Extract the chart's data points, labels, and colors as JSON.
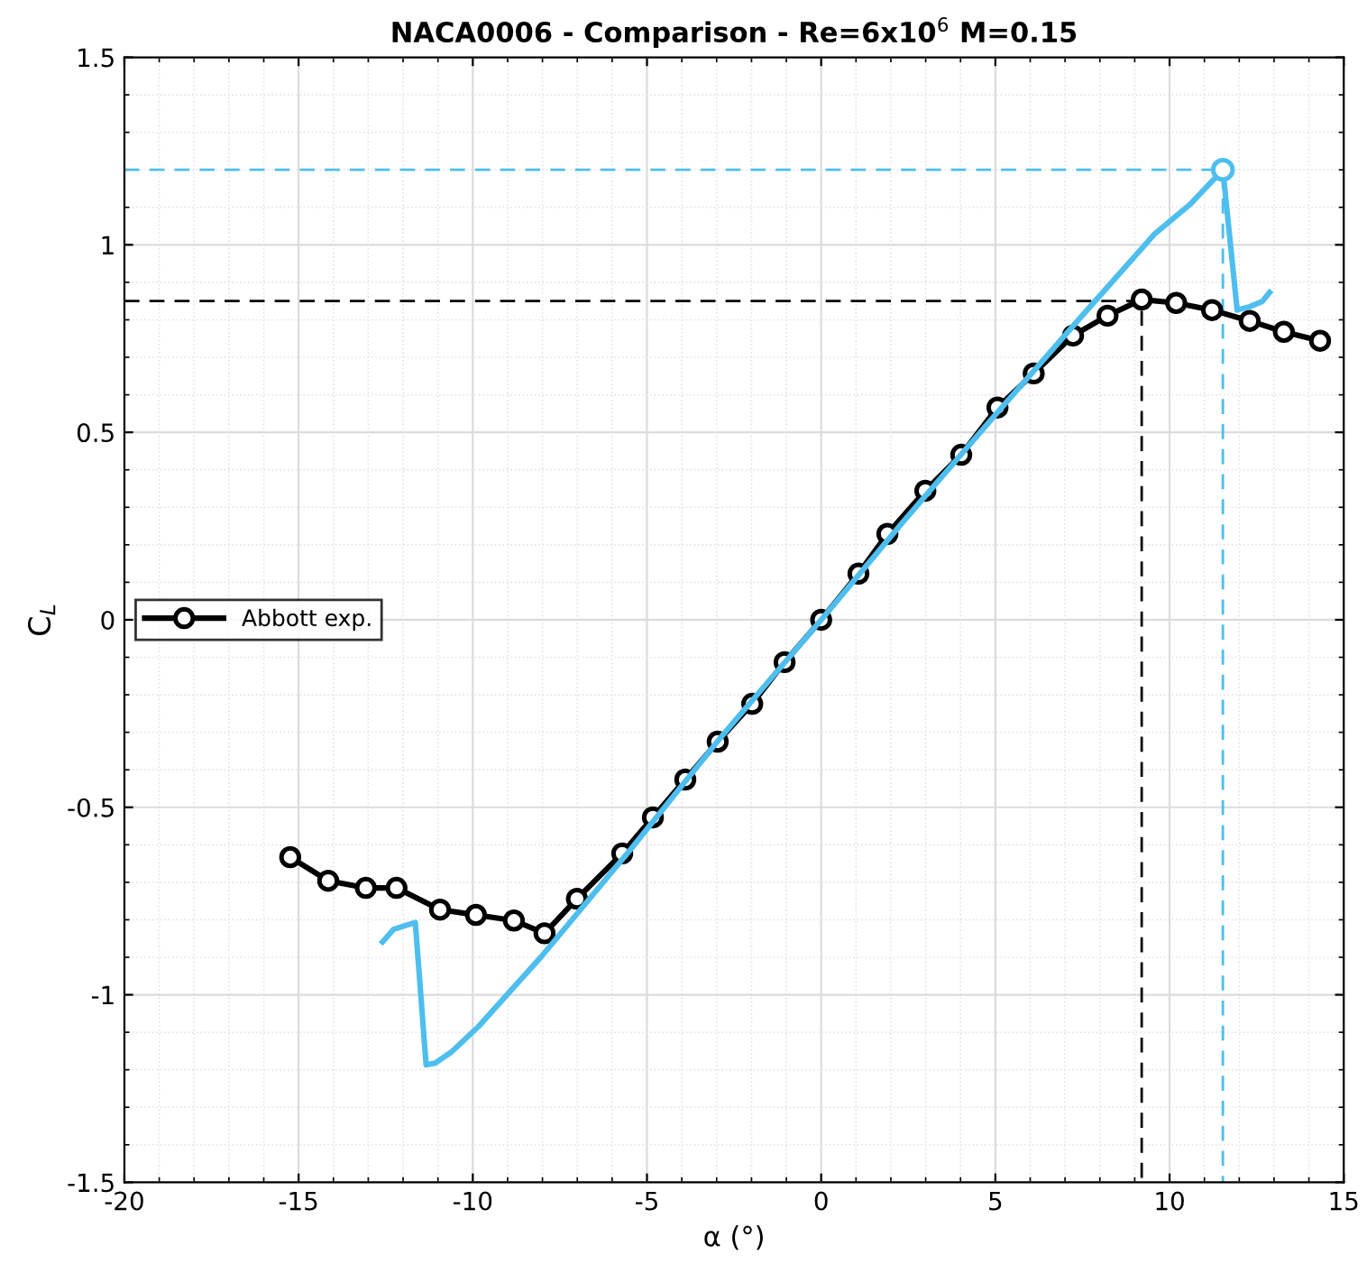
{
  "chart_data": {
    "type": "line",
    "title": "NACA0006 - Comparison - Re=6x10$^{6}$ M=0.15",
    "xlabel": "α (°)",
    "ylabel": "C$_{L}$",
    "xlim": [
      -20,
      15
    ],
    "xticks": [
      -20,
      -15,
      -10,
      -5,
      0,
      5,
      10,
      15
    ],
    "ylim": [
      -1.5,
      1.5
    ],
    "yticks": [
      -1.5,
      -1,
      -0.5,
      0,
      0.5,
      1,
      1.5
    ],
    "grid": true,
    "legend": "left",
    "series": [
      {
        "name": "Abbott exp.",
        "color": "#000000",
        "marker": "circle",
        "line_style": "solid",
        "x": [
          -15.24,
          -14.15,
          -13.07,
          -12.19,
          -10.94,
          -9.91,
          -8.82,
          -7.94,
          -7.01,
          -5.71,
          -4.83,
          -3.9,
          -2.97,
          -1.98,
          -1.05,
          0,
          1.07,
          1.9,
          2.99,
          4.02,
          5.06,
          6.1,
          7.23,
          8.22,
          9.2,
          10.19,
          11.22,
          12.3,
          13.28,
          14.32
        ],
        "values": [
          -0.633,
          -0.696,
          -0.715,
          -0.715,
          -0.773,
          -0.787,
          -0.802,
          -0.836,
          -0.744,
          -0.623,
          -0.527,
          -0.426,
          -0.325,
          -0.224,
          -0.113,
          0,
          0.123,
          0.229,
          0.344,
          0.44,
          0.566,
          0.657,
          0.758,
          0.811,
          0.854,
          0.845,
          0.826,
          0.797,
          0.768,
          0.744
        ]
      },
      {
        "color": "#4dbeee",
        "marker": "none",
        "line_style": "solid",
        "x": [
          -12.59,
          -12.28,
          -11.96,
          -11.65,
          -11.34,
          -11.08,
          -10.62,
          -9.84,
          -8.03,
          -5.44,
          -2.86,
          0,
          2.32,
          4.91,
          7.49,
          9.56,
          10.6,
          11.53,
          11.94,
          12.3,
          12.66,
          12.87
        ],
        "values": [
          -0.859,
          -0.826,
          -0.816,
          -0.807,
          -1.187,
          -1.182,
          -1.153,
          -1.085,
          -0.898,
          -0.609,
          -0.311,
          0,
          0.258,
          0.537,
          0.811,
          1.028,
          1.109,
          1.2,
          0.826,
          0.835,
          0.849,
          0.873
        ]
      },
      {
        "color": "#000000",
        "marker": "none",
        "line_style": "dashed",
        "x": [
          -20,
          9.2,
          9.2
        ],
        "values": [
          0.85,
          0.85,
          -1.5
        ]
      },
      {
        "color": "#4dbeee",
        "marker": "none",
        "line_style": "dashed",
        "x": [
          -20,
          11.53,
          11.53
        ],
        "values": [
          1.2,
          1.2,
          -1.5
        ]
      },
      {
        "color": "#4dbeee",
        "type": "scatter",
        "marker": "circle",
        "x": [
          11.53
        ],
        "values": [
          1.2
        ]
      }
    ]
  }
}
